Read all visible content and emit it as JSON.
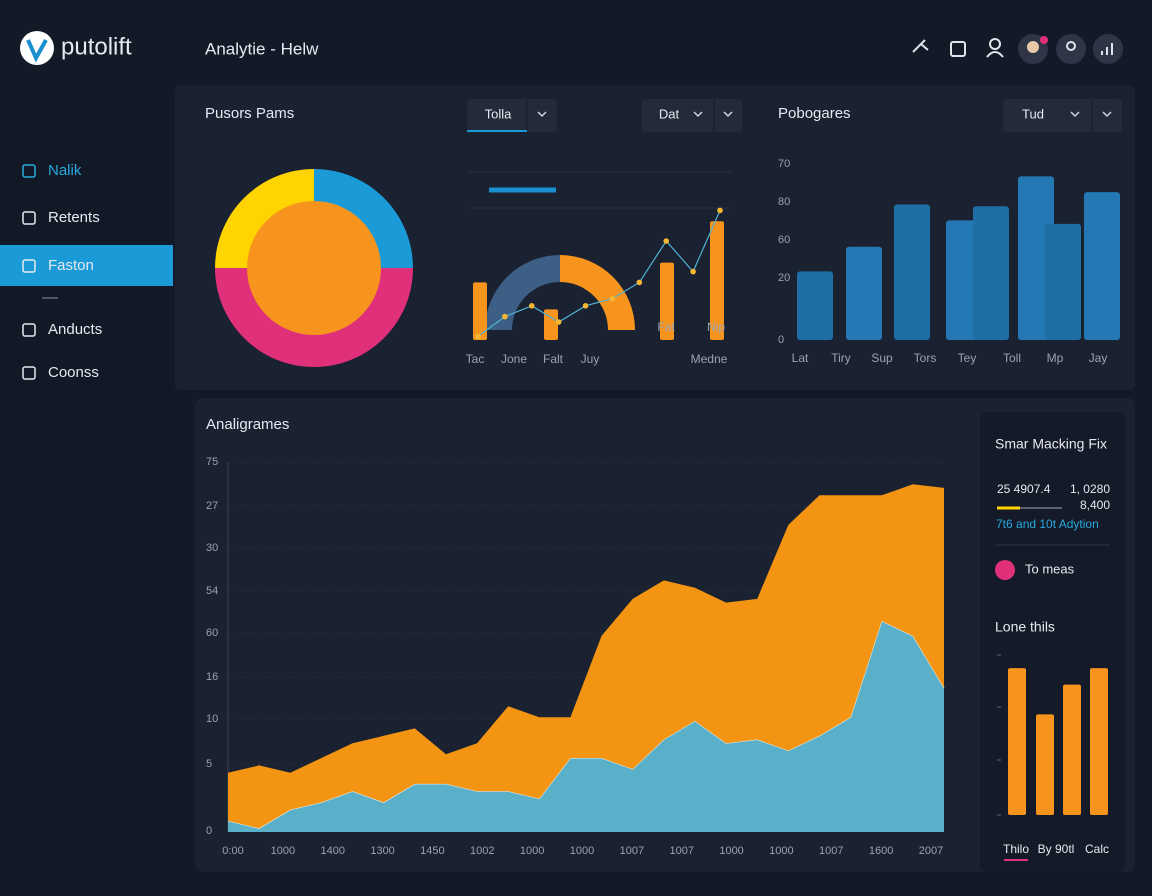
{
  "app": {
    "logo": "putolift",
    "title": "Analytie - Helw"
  },
  "sidebar": {
    "items": [
      "Nalik",
      "Retents",
      "Faston",
      "Anducts",
      "Coonss"
    ]
  },
  "panel_1": {
    "title": "Pusors Pams",
    "dropdowns": [
      "Tolla",
      "Dat"
    ],
    "donut": {
      "type": "pie",
      "values": [
        25,
        25,
        50
      ],
      "colors": [
        "#ffd400",
        "#1a9ad6",
        "#e0307a"
      ],
      "center_color": "#f7941d"
    },
    "mixed": {
      "type": "bar",
      "ylim": [
        0,
        100
      ],
      "gauge": {
        "values": [
          50,
          50
        ],
        "colors": [
          "#3d5f86",
          "#f7941d"
        ]
      },
      "bar_values": [
        32,
        17,
        43,
        66
      ],
      "bar_color": "#f7941d",
      "line_values": [
        2,
        13,
        19,
        10,
        19,
        23,
        32,
        55,
        38,
        72
      ],
      "line_color": "#4fb3d6",
      "point_color": "#f7b731",
      "x_labels": [
        "Tac",
        "Jone",
        "Falt",
        "Juy",
        "Medne"
      ],
      "bar_labels": [
        "Fat",
        "Nip"
      ]
    }
  },
  "panel_2": {
    "title": "Pobogares",
    "dropdown": "Tud",
    "chart": {
      "type": "bar",
      "ylim": [
        0,
        100
      ],
      "y_labels": [
        "70",
        "80",
        "60",
        "20",
        "0"
      ],
      "categories": [
        "Lat",
        "Tiry",
        "Sup",
        "Tors",
        "Tey",
        "Toll",
        "Mp",
        "Jay"
      ],
      "values": [
        39,
        53,
        77,
        68,
        76,
        93,
        66,
        84
      ],
      "colors": [
        "#1f6ea6",
        "#2479b4"
      ]
    }
  },
  "panel_3": {
    "title": "Analigrames",
    "chart": {
      "type": "area",
      "stacked": true,
      "ylim": [
        0,
        100
      ],
      "y_labels": [
        "75",
        "27",
        "30",
        "54",
        "60",
        "16",
        "10",
        "5",
        "0"
      ],
      "x_labels": [
        "0:00",
        "1000",
        "1400",
        "1300",
        "1450",
        "1002",
        "1000",
        "1000",
        "1007",
        "1007",
        "1000",
        "1000",
        "1007",
        "1600",
        "2007"
      ],
      "series": [
        {
          "color": "#5ab0c8",
          "values": [
            3,
            1,
            6,
            8,
            11,
            8,
            13,
            13,
            11,
            11,
            9,
            20,
            20,
            17,
            25,
            30,
            24,
            25,
            22,
            26,
            31,
            57,
            53,
            39
          ]
        },
        {
          "color": "#f39412",
          "values": [
            13,
            17,
            10,
            12,
            13,
            18,
            15,
            8,
            13,
            23,
            22,
            11,
            33,
            46,
            43,
            36,
            38,
            38,
            61,
            65,
            60,
            34,
            41,
            54
          ]
        }
      ]
    }
  },
  "side_card": {
    "title": "Smar Macking Fix",
    "stat_left": "25 4907.4",
    "stat_right": "1, 0280",
    "stat_second": "8,400",
    "note": "7t6 and 10t Adytion",
    "legend": "To meas",
    "chart_title": "Lone thils",
    "chart": {
      "type": "bar",
      "ylim": [
        0,
        100
      ],
      "values": [
        89,
        61,
        79,
        89
      ],
      "color": "#f7941d",
      "x_labels": [
        "Thilo",
        "By 90tl",
        "Calc"
      ]
    }
  }
}
